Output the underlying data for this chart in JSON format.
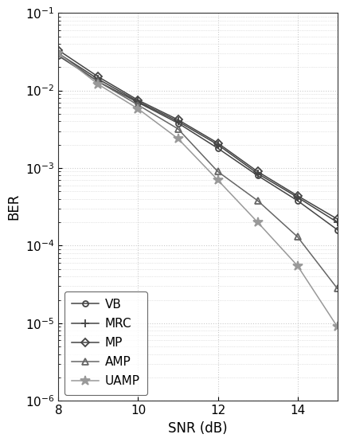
{
  "snr": [
    8,
    9,
    10,
    11,
    12,
    13,
    14,
    15
  ],
  "VB": [
    0.028,
    0.013,
    0.007,
    0.0038,
    0.0018,
    0.0008,
    0.00038,
    0.00016
  ],
  "MRC": [
    0.03,
    0.014,
    0.0072,
    0.004,
    0.002,
    0.00085,
    0.00042,
    0.0002
  ],
  "MP": [
    0.033,
    0.015,
    0.0075,
    0.0042,
    0.0021,
    0.0009,
    0.00044,
    0.00022
  ],
  "AMP": [
    0.03,
    0.013,
    0.0065,
    0.0032,
    0.0009,
    0.00038,
    0.00013,
    2.8e-05
  ],
  "UAMP": [
    0.03,
    0.012,
    0.0058,
    0.0024,
    0.0007,
    0.0002,
    5.5e-05,
    9e-06
  ],
  "colors": {
    "VB": "#444444",
    "MRC": "#444444",
    "MP": "#444444",
    "AMP": "#666666",
    "UAMP": "#999999"
  },
  "markers": {
    "VB": "o",
    "MRC": "+",
    "MP": "D",
    "AMP": "^",
    "UAMP": "*"
  },
  "marker_sizes": {
    "VB": 5,
    "MRC": 7,
    "MP": 5,
    "AMP": 6,
    "UAMP": 9
  },
  "xlabel": "SNR (dB)",
  "ylabel": "BER",
  "xlim": [
    8,
    15
  ],
  "ylim_log": [
    -6,
    -1
  ],
  "xticks": [
    8,
    10,
    12,
    14
  ],
  "grid_color": "#cccccc",
  "bg_color": "#ffffff",
  "legend_loc": "lower left"
}
